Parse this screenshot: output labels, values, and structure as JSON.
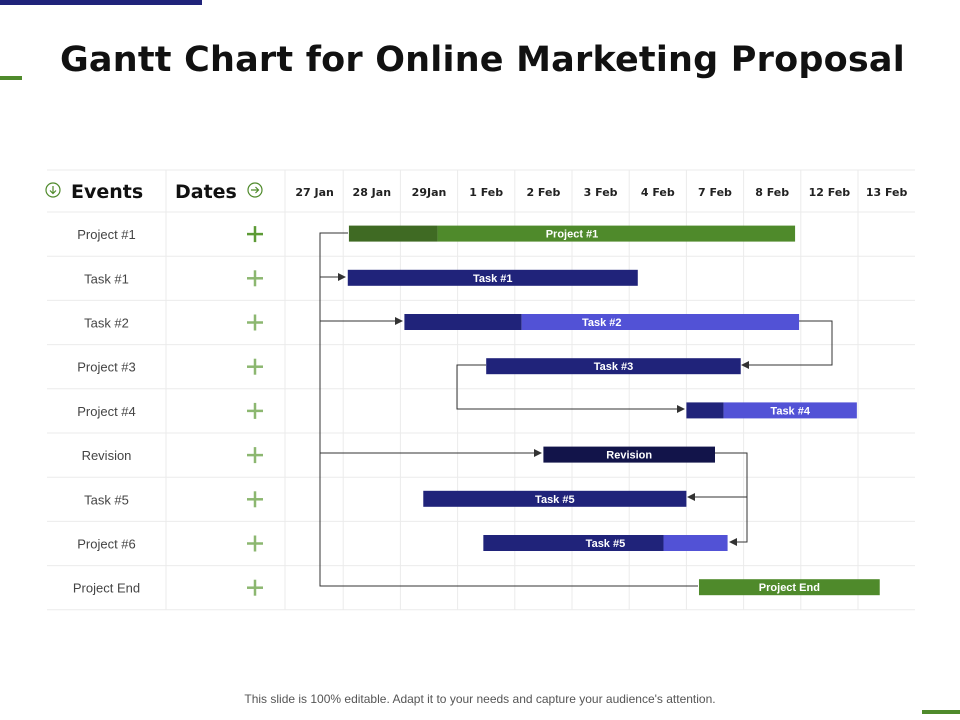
{
  "title": "Gantt Chart for Online Marketing Proposal",
  "footer": "This slide is 100% editable. Adapt it to your needs and capture your audience's attention.",
  "colors": {
    "navy": "#20237a",
    "green": "#4f8a2b",
    "dark_green": "#3f6a23",
    "light_blue": "#5252d6",
    "dark_navy": "#12144a",
    "plus": "#5c9a35"
  },
  "chart_data": {
    "type": "gantt",
    "headers": {
      "events": "Events",
      "dates": "Dates"
    },
    "columns": [
      "27 Jan",
      "28 Jan",
      "29Jan",
      "1 Feb",
      "2 Feb",
      "3 Feb",
      "4 Feb",
      "7 Feb",
      "8 Feb",
      "12 Feb",
      "13 Feb"
    ],
    "rows": [
      "Project #1",
      "Task #1",
      "Task #2",
      "Project #3",
      "Project #4",
      "Revision",
      "Task #5",
      "Project #6",
      "Project End"
    ],
    "bars": [
      {
        "row": 0,
        "label": "Project #1",
        "start": 1.1,
        "end": 8.9,
        "split": 2.65,
        "color_a": "#3f6a23",
        "color_b": "#4f8a2b"
      },
      {
        "row": 1,
        "label": "Task #1",
        "start": 1.08,
        "end": 6.15,
        "color_a": "#20237a"
      },
      {
        "row": 2,
        "label": "Task #2",
        "start": 2.07,
        "end": 8.97,
        "split": 4.12,
        "color_a": "#20237a",
        "color_b": "#5252d6"
      },
      {
        "row": 3,
        "label": "Task #3",
        "start": 3.5,
        "end": 7.95,
        "color_a": "#20237a"
      },
      {
        "row": 4,
        "label": "Task #4",
        "start": 7.0,
        "end": 9.98,
        "split": 7.65,
        "color_a": "#20237a",
        "color_b": "#5252d6"
      },
      {
        "row": 5,
        "label": "Revision",
        "start": 4.5,
        "end": 7.5,
        "color_a": "#12144a"
      },
      {
        "row": 6,
        "label": "Task #5",
        "start": 2.4,
        "end": 7.0,
        "color_a": "#20237a"
      },
      {
        "row": 7,
        "label": "Task #5",
        "start": 3.45,
        "end": 7.72,
        "split": 6.6,
        "color_a": "#20237a",
        "color_b": "#5252d6"
      },
      {
        "row": 8,
        "label": "Project End",
        "start": 7.22,
        "end": 10.38,
        "color_a": "#4f8a2b"
      }
    ],
    "grid": true
  }
}
